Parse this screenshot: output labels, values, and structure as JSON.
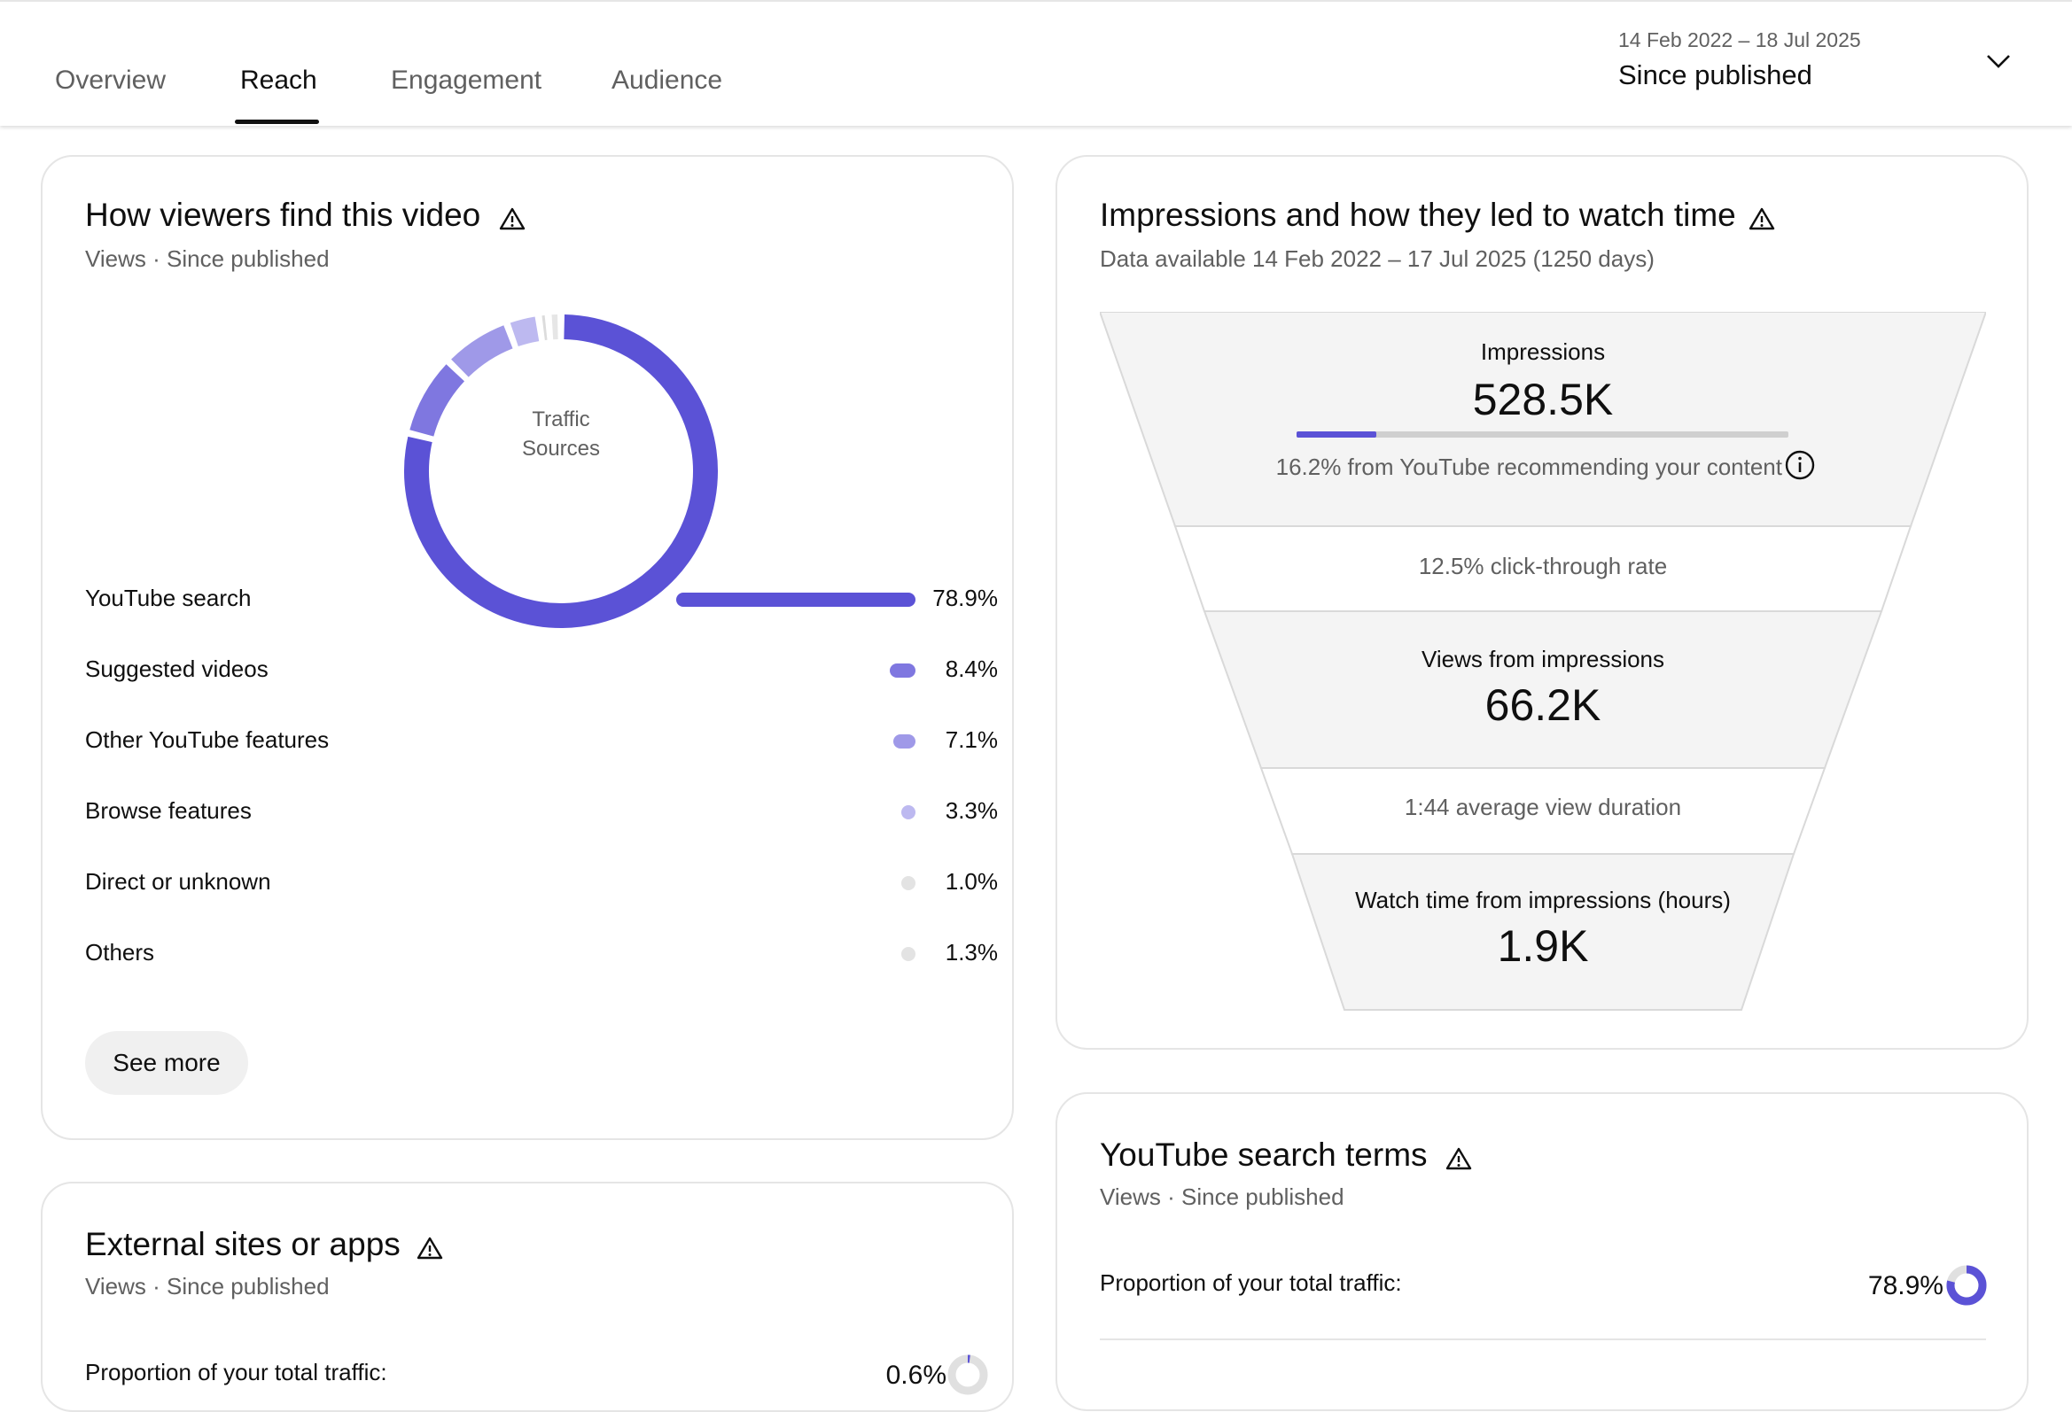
{
  "tabs": [
    {
      "label": "Overview",
      "active": false
    },
    {
      "label": "Reach",
      "active": true
    },
    {
      "label": "Engagement",
      "active": false
    },
    {
      "label": "Audience",
      "active": false
    }
  ],
  "date_picker": {
    "range": "14 Feb 2022 – 18 Jul 2025",
    "label": "Since published",
    "icon": "chevron-down-icon"
  },
  "traffic_card": {
    "title": "How viewers find this video",
    "subtitle": "Views · Since published",
    "donut_label_line1": "Traffic",
    "donut_label_line2": "Sources",
    "sources": [
      {
        "name": "YouTube search",
        "percent": "78.9%",
        "value": 78.9,
        "color": "#5b52d6"
      },
      {
        "name": "Suggested videos",
        "percent": "8.4%",
        "value": 8.4,
        "color": "#7f77e0"
      },
      {
        "name": "Other YouTube features",
        "percent": "7.1%",
        "value": 7.1,
        "color": "#9f99e8"
      },
      {
        "name": "Browse features",
        "percent": "3.3%",
        "value": 3.3,
        "color": "#bdb9f0"
      },
      {
        "name": "Direct or unknown",
        "percent": "1.0%",
        "value": 1.0,
        "color": "#dcdcdc"
      },
      {
        "name": "Others",
        "percent": "1.3%",
        "value": 1.3,
        "color": "#e6e6e6"
      }
    ],
    "see_more_label": "See more"
  },
  "impressions_card": {
    "title": "Impressions and how they led to watch time",
    "subtitle": "Data available 14 Feb 2022 – 17 Jul 2025 (1250 days)",
    "impressions_label": "Impressions",
    "impressions_value": "528.5K",
    "recommend_text": "16.2% from YouTube recommending your content",
    "recommend_fraction": 0.162,
    "ctr_text": "12.5% click-through rate",
    "views_label": "Views from impressions",
    "views_value": "66.2K",
    "avg_duration_text": "1:44 average view duration",
    "watch_label": "Watch time from impressions (hours)",
    "watch_value": "1.9K"
  },
  "external_card": {
    "title": "External sites or apps",
    "subtitle": "Views · Since published",
    "proportion_label": "Proportion of your total traffic:",
    "proportion_value": "0.6%",
    "proportion_fraction": 0.006
  },
  "search_terms_card": {
    "title": "YouTube search terms",
    "subtitle": "Views · Since published",
    "proportion_label": "Proportion of your total traffic:",
    "proportion_value": "78.9%",
    "proportion_fraction": 0.789
  },
  "colors": {
    "accent": "#5b52d6",
    "track": "#e0e0e0"
  }
}
